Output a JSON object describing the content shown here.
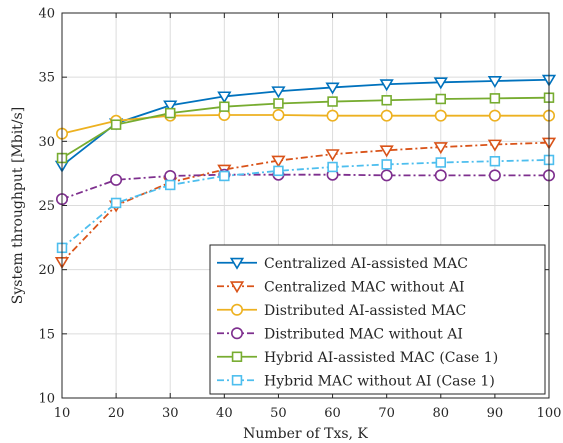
{
  "chart_data": {
    "type": "line",
    "xlabel": "Number of Txs, K",
    "ylabel": "System throughput [Mbit/s]",
    "x": [
      10,
      20,
      30,
      40,
      50,
      60,
      70,
      80,
      90,
      100
    ],
    "xlim": [
      10,
      100
    ],
    "ylim": [
      10,
      40
    ],
    "xticks": [
      "10",
      "20",
      "30",
      "40",
      "50",
      "60",
      "70",
      "80",
      "90",
      "100"
    ],
    "yticks": [
      "10",
      "15",
      "20",
      "25",
      "30",
      "35",
      "40"
    ],
    "grid": true,
    "legend_position": "bottom-right",
    "series": [
      {
        "name": "Centralized AI-assisted MAC",
        "color": "#0072BD",
        "line": "solid",
        "marker": "triangle-down",
        "values": [
          28.1,
          31.4,
          32.8,
          33.5,
          33.9,
          34.2,
          34.45,
          34.6,
          34.7,
          34.8
        ]
      },
      {
        "name": "Centralized MAC without AI",
        "color": "#D95319",
        "line": "dashdot",
        "marker": "triangle-down",
        "values": [
          20.6,
          25.0,
          26.8,
          27.8,
          28.5,
          29.0,
          29.3,
          29.55,
          29.75,
          29.9
        ]
      },
      {
        "name": "Distributed AI-assisted MAC",
        "color": "#EDB120",
        "line": "solid",
        "marker": "circle",
        "values": [
          30.6,
          31.6,
          32.0,
          32.05,
          32.05,
          32.0,
          32.0,
          32.0,
          32.0,
          32.0
        ]
      },
      {
        "name": "Distributed MAC without AI",
        "color": "#7E2F8E",
        "line": "dashdot",
        "marker": "circle",
        "values": [
          25.5,
          27.0,
          27.3,
          27.4,
          27.4,
          27.4,
          27.35,
          27.35,
          27.35,
          27.35
        ]
      },
      {
        "name": "Hybrid AI-assisted MAC (Case 1)",
        "color": "#77AC30",
        "line": "solid",
        "marker": "square",
        "values": [
          28.7,
          31.3,
          32.2,
          32.7,
          32.95,
          33.1,
          33.2,
          33.3,
          33.35,
          33.4
        ]
      },
      {
        "name": "Hybrid MAC without AI (Case 1)",
        "color": "#4DBEEE",
        "line": "dashdot",
        "marker": "square",
        "values": [
          21.7,
          25.2,
          26.6,
          27.3,
          27.7,
          28.0,
          28.2,
          28.35,
          28.45,
          28.55
        ]
      }
    ]
  }
}
